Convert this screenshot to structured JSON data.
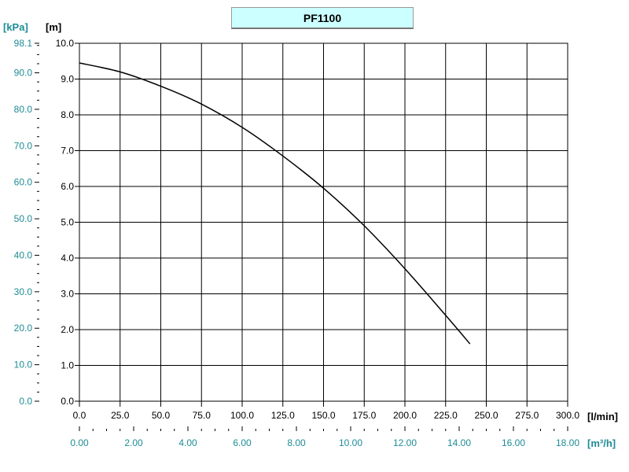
{
  "colors": {
    "curve": "#000000",
    "grid": "#000000",
    "teal_axis": "#1e8c96",
    "title_bg": "#ccffff"
  },
  "chart_data": {
    "type": "line",
    "title": "PF1100",
    "xlabel": "[l/min]",
    "x2label": "[m³/h]",
    "ylabel": "[m]",
    "y2label": "[kPa]",
    "xlim": [
      0,
      300
    ],
    "ylim": [
      0,
      10
    ],
    "x2lim": [
      0,
      18
    ],
    "y2lim": [
      0,
      98.1
    ],
    "grid": true,
    "x_ticks": [
      "0.0",
      "25.0",
      "50.0",
      "75.0",
      "100.0",
      "125.0",
      "150.0",
      "175.0",
      "200.0",
      "225.0",
      "250.0",
      "275.0",
      "300.0"
    ],
    "y_ticks": [
      "0.0",
      "1.0",
      "2.0",
      "3.0",
      "4.0",
      "5.0",
      "6.0",
      "7.0",
      "8.0",
      "9.0",
      "10.0"
    ],
    "x2_ticks": [
      "0.00",
      "2.00",
      "4.00",
      "6.00",
      "8.00",
      "10.00",
      "12.00",
      "14.00",
      "16.00",
      "18.00"
    ],
    "y2_ticks": [
      "0.0",
      "10.0",
      "20.0",
      "30.0",
      "40.0",
      "50.0",
      "60.0",
      "70.0",
      "80.0",
      "90.0",
      "98.1"
    ],
    "series": [
      {
        "x": [
          0,
          25,
          50,
          75,
          100,
          125,
          150,
          175,
          200,
          225,
          240
        ],
        "y": [
          9.45,
          9.2,
          8.8,
          8.3,
          7.65,
          6.85,
          5.95,
          4.9,
          3.7,
          2.4,
          1.6
        ]
      }
    ]
  }
}
